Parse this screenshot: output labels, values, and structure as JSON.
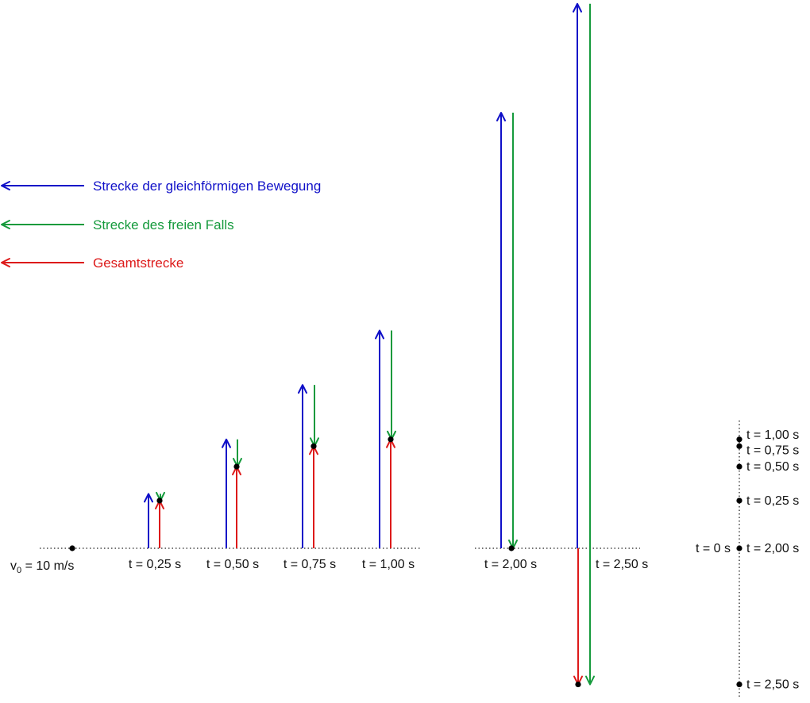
{
  "colors": {
    "uniform": "#1010c8",
    "free_fall": "#159a3c",
    "total": "#dd1a1a",
    "baseline": "#222222",
    "dot": "#000000"
  },
  "legend": [
    {
      "label": "Strecke der gleichförmigen Bewegung",
      "color_key": "uniform"
    },
    {
      "label": "Strecke des freien Falls",
      "color_key": "free_fall"
    },
    {
      "label": "Gesamtstrecke",
      "color_key": "total"
    }
  ],
  "v0": {
    "symbol": "v",
    "subscript": "0",
    "value": "= 10 m/s"
  },
  "v0_m_per_s": 10,
  "g_m_per_s2": 10,
  "moments": [
    {
      "t": 0.25,
      "label": "t = 0,25 s",
      "uniform_m": 2.5,
      "fall_m": 0.3125,
      "total_m": 2.1875
    },
    {
      "t": 0.5,
      "label": "t = 0,50 s",
      "uniform_m": 5.0,
      "fall_m": 1.25,
      "total_m": 3.75
    },
    {
      "t": 0.75,
      "label": "t = 0,75 s",
      "uniform_m": 7.5,
      "fall_m": 2.8125,
      "total_m": 4.6875
    },
    {
      "t": 1.0,
      "label": "t = 1,00 s",
      "uniform_m": 10.0,
      "fall_m": 5.0,
      "total_m": 5.0
    },
    {
      "t": 2.0,
      "label": "t = 2,00 s",
      "uniform_m": 20.0,
      "fall_m": 20.0,
      "total_m": 0.0
    },
    {
      "t": 2.5,
      "label": "t = 2,50 s",
      "uniform_m": 25.0,
      "fall_m": 31.25,
      "total_m": -6.25
    }
  ],
  "side_scale": {
    "origin_label": "t = 0 s",
    "marks": [
      {
        "label": "t = 1,00 s",
        "height_m": 5.0
      },
      {
        "label": "t = 0,75 s",
        "height_m": 4.6875
      },
      {
        "label": "t = 0,50 s",
        "height_m": 3.75
      },
      {
        "label": "t = 0,25 s",
        "height_m": 2.1875
      },
      {
        "label": "t = 2,00 s",
        "height_m": 0.0
      },
      {
        "label": "t = 2,50 s",
        "height_m": -6.25
      }
    ]
  }
}
